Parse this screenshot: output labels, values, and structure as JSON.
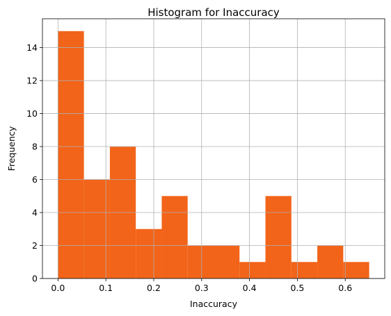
{
  "chart_data": {
    "type": "bar",
    "title": "Histogram for Inaccuracy",
    "xlabel": "Inaccuracy",
    "ylabel": "Frequency",
    "bin_edges": [
      0.0,
      0.05417,
      0.10833,
      0.1625,
      0.21667,
      0.27083,
      0.325,
      0.37917,
      0.43333,
      0.4875,
      0.54167,
      0.59583,
      0.65
    ],
    "values": [
      15,
      6,
      8,
      3,
      5,
      2,
      2,
      1,
      5,
      1,
      2,
      1
    ],
    "xlim": [
      -0.0325,
      0.6825
    ],
    "ylim": [
      0,
      15.75
    ],
    "x_ticks": [
      0.0,
      0.1,
      0.2,
      0.3,
      0.4,
      0.5,
      0.6
    ],
    "x_tick_labels": [
      "0.0",
      "0.1",
      "0.2",
      "0.3",
      "0.4",
      "0.5",
      "0.6"
    ],
    "y_ticks": [
      0,
      2,
      4,
      6,
      8,
      10,
      12,
      14
    ],
    "y_tick_labels": [
      "0",
      "2",
      "4",
      "6",
      "8",
      "10",
      "12",
      "14"
    ],
    "grid": true,
    "legend": "none",
    "bar_color": "#f26419",
    "grid_color": "#b0b0b0"
  }
}
